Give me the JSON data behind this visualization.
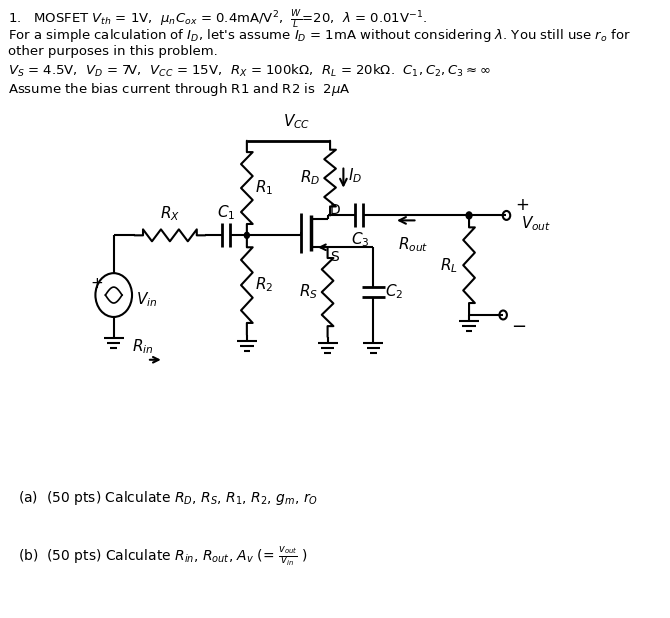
{
  "bg_color": "#ffffff",
  "text_color": "#000000",
  "line_color": "#000000",
  "title_line1": "1.   MOSFET $V_{th}$ = 1V,  $\\mu_n C_{ox}$ = 0.4mA/V$^2$,  $\\frac{W}{L}$=20,  $\\lambda$ = 0.01V$^{-1}$.",
  "title_line2": "For a simple calculation of $I_D$, let's assume $I_D$ = 1mA without considering $\\lambda$. You still use $r_o$ for",
  "title_line3": "other purposes in this problem.",
  "title_line4": "$V_S$ = 4.5V,  $V_D$ = 7V,  $V_{CC}$ = 15V,  $R_X$ = 100k$\\Omega$,  $R_L$ = 20k$\\Omega$.  $C_1, C_2, C_3 \\approx \\infty$",
  "title_line5": "Assume the bias current through R1 and R2 is  2$\\mu$A",
  "part_a": "(a)  (50 pts) Calculate $R_D$, $R_S$, $R_1$, $R_2$, $g_m$, $r_O$",
  "part_b": "(b)  (50 pts) Calculate $R_{in}$, $R_{out}$, $A_v$ (= $\\frac{v_{out}}{v_{in}}$ )",
  "fig_width": 6.7,
  "fig_height": 6.18,
  "dpi": 100
}
